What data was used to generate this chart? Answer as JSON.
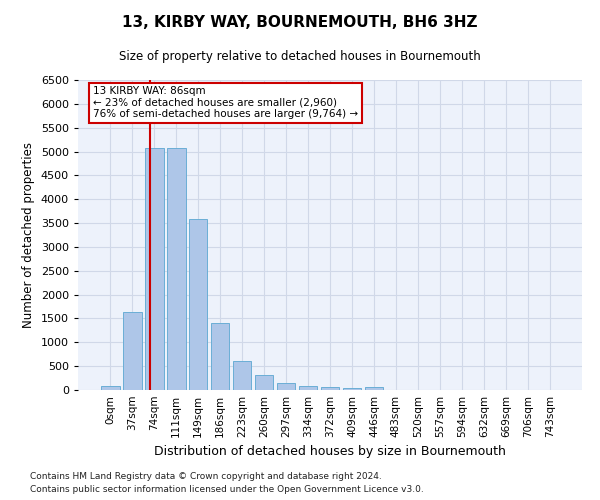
{
  "title": "13, KIRBY WAY, BOURNEMOUTH, BH6 3HZ",
  "subtitle": "Size of property relative to detached houses in Bournemouth",
  "xlabel": "Distribution of detached houses by size in Bournemouth",
  "ylabel": "Number of detached properties",
  "footnote1": "Contains HM Land Registry data © Crown copyright and database right 2024.",
  "footnote2": "Contains public sector information licensed under the Open Government Licence v3.0.",
  "bar_labels": [
    "0sqm",
    "37sqm",
    "74sqm",
    "111sqm",
    "149sqm",
    "186sqm",
    "223sqm",
    "260sqm",
    "297sqm",
    "334sqm",
    "372sqm",
    "409sqm",
    "446sqm",
    "483sqm",
    "520sqm",
    "557sqm",
    "594sqm",
    "632sqm",
    "669sqm",
    "706sqm",
    "743sqm"
  ],
  "bar_values": [
    75,
    1640,
    5080,
    5080,
    3580,
    1400,
    610,
    305,
    155,
    80,
    55,
    50,
    60,
    0,
    0,
    0,
    0,
    0,
    0,
    0,
    0
  ],
  "bar_color": "#aec6e8",
  "bar_edgecolor": "#6aaed6",
  "marker_label": "13 KIRBY WAY: 86sqm",
  "annotation_line1": "← 23% of detached houses are smaller (2,960)",
  "annotation_line2": "76% of semi-detached houses are larger (9,764) →",
  "marker_color": "#cc0000",
  "ylim": [
    0,
    6500
  ],
  "yticks": [
    0,
    500,
    1000,
    1500,
    2000,
    2500,
    3000,
    3500,
    4000,
    4500,
    5000,
    5500,
    6000,
    6500
  ],
  "grid_color": "#d0d8e8",
  "background_color": "#edf2fb",
  "title_fontsize": 11,
  "subtitle_fontsize": 8.5,
  "ylabel_fontsize": 8.5,
  "xlabel_fontsize": 9,
  "tick_fontsize": 8,
  "xtick_fontsize": 7.5,
  "annot_fontsize": 7.5,
  "footnote_fontsize": 6.5
}
